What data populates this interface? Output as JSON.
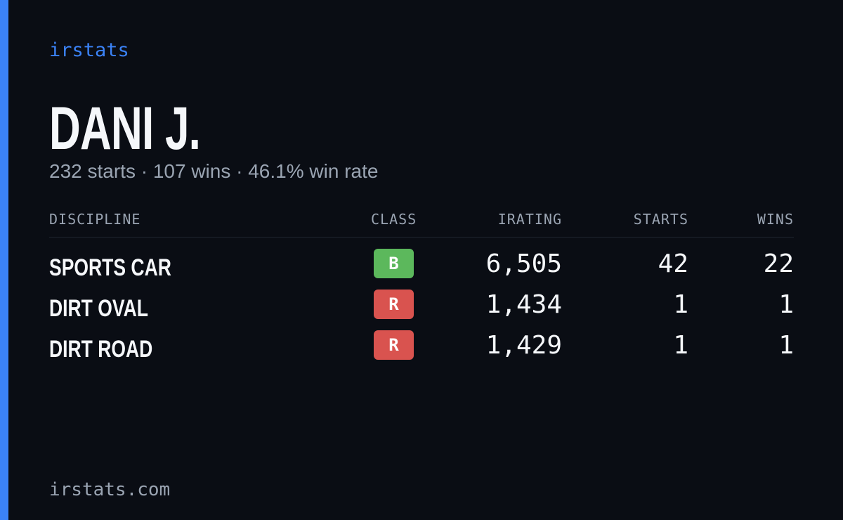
{
  "brand": "irstats",
  "name": "DANI J.",
  "summary": "232 starts · 107 wins · 46.1% win rate",
  "table": {
    "headers": [
      "DISCIPLINE",
      "CLASS",
      "IRATING",
      "STARTS",
      "WINS"
    ],
    "rows": [
      {
        "discipline": "SPORTS CAR",
        "class": "B",
        "class_color": "#5cb85c",
        "irating": "6,505",
        "starts": "42",
        "wins": "22"
      },
      {
        "discipline": "DIRT OVAL",
        "class": "R",
        "class_color": "#d9534f",
        "irating": "1,434",
        "starts": "1",
        "wins": "1"
      },
      {
        "discipline": "DIRT ROAD",
        "class": "R",
        "class_color": "#d9534f",
        "irating": "1,429",
        "starts": "1",
        "wins": "1"
      }
    ]
  },
  "footer": "irstats.com"
}
